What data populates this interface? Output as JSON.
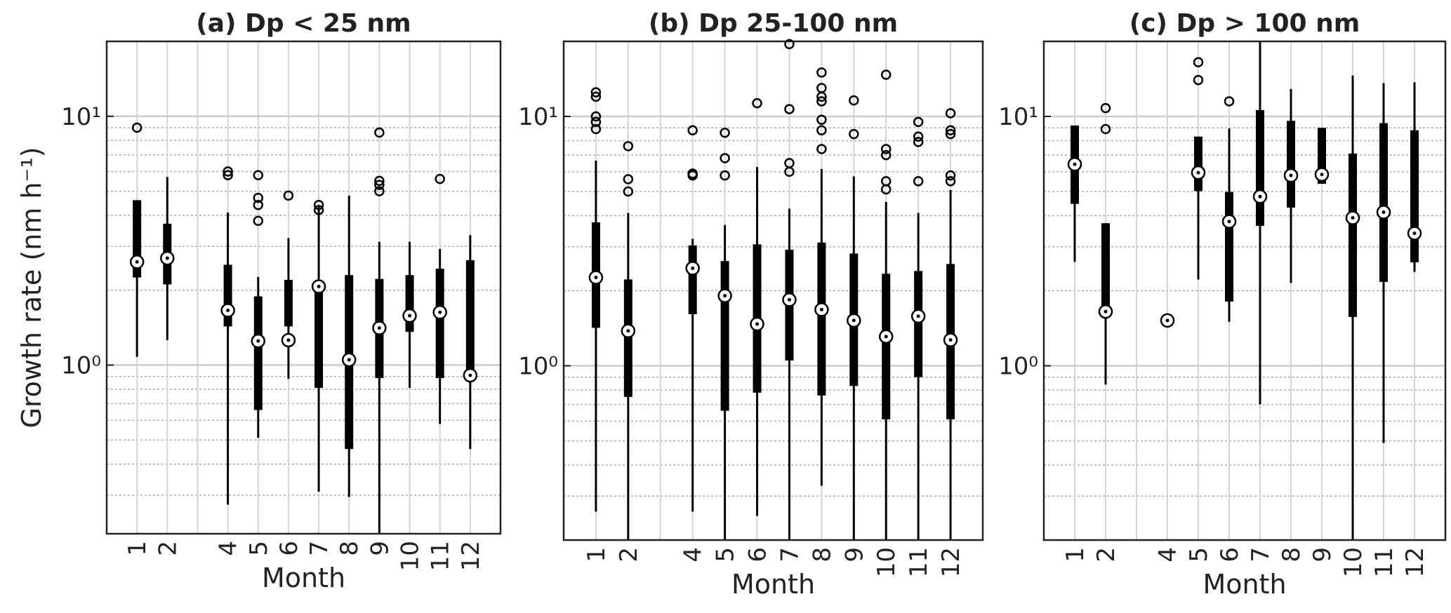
{
  "chart_data": [
    {
      "type": "box",
      "title": "(a) Dp < 25 nm",
      "ylabel": "Growth rate (nm h⁻¹)",
      "xlabel": "Month",
      "categories": [
        "1",
        "2",
        null,
        "4",
        "5",
        "6",
        "7",
        "8",
        "9",
        "10",
        "11",
        "12"
      ],
      "low": [
        1.08,
        1.26,
        null,
        0.275,
        0.51,
        0.88,
        0.31,
        0.295,
        0.21,
        0.81,
        0.58,
        0.46
      ],
      "q1": [
        2.25,
        2.11,
        null,
        1.43,
        0.66,
        1.43,
        0.81,
        0.46,
        0.887,
        1.36,
        0.887,
        0.91
      ],
      "median": [
        2.6,
        2.69,
        null,
        1.66,
        1.25,
        1.26,
        2.07,
        1.05,
        1.41,
        1.58,
        1.63,
        0.91
      ],
      "q3": [
        4.6,
        3.7,
        null,
        2.53,
        1.89,
        2.2,
        2.11,
        2.3,
        2.22,
        2.3,
        2.44,
        2.64
      ],
      "high": [
        4.6,
        5.7,
        null,
        4.1,
        2.26,
        3.24,
        4.35,
        4.8,
        3.13,
        3.13,
        2.93,
        3.33
      ],
      "outliers": [
        [
          9.0
        ],
        [],
        [],
        [
          5.8,
          6.0
        ],
        [
          5.8,
          4.7,
          4.4,
          3.8
        ],
        [
          4.8
        ],
        [
          4.2,
          4.4
        ],
        [],
        [
          8.6,
          5.5,
          5.3,
          5.0
        ],
        [],
        [
          5.6
        ],
        []
      ],
      "log_y": true,
      "ylim": [
        0.21,
        20
      ],
      "yticks": [
        {
          "value": 1,
          "label": "10⁰"
        },
        {
          "value": 10,
          "label": "10¹"
        }
      ],
      "minor_yticks": [
        0.3,
        0.4,
        0.5,
        0.6,
        0.7,
        0.8,
        0.9,
        2,
        3,
        4,
        5,
        6,
        7,
        8,
        9
      ],
      "grid": true
    },
    {
      "type": "box",
      "title": "(b) Dp 25-100 nm",
      "xlabel": "Month",
      "categories": [
        "1",
        "2",
        null,
        "4",
        "5",
        "6",
        "7",
        "8",
        "9",
        "10",
        "11",
        "12"
      ],
      "low": [
        0.26,
        0.2,
        null,
        0.26,
        0.2,
        0.25,
        0.2,
        0.33,
        0.2,
        0.2,
        0.2,
        0.2
      ],
      "q1": [
        1.42,
        0.75,
        null,
        1.61,
        0.66,
        0.78,
        1.05,
        0.76,
        0.83,
        0.61,
        0.9,
        0.61
      ],
      "median": [
        2.26,
        1.38,
        null,
        2.46,
        1.91,
        1.47,
        1.84,
        1.68,
        1.52,
        1.31,
        1.58,
        1.27
      ],
      "q3": [
        3.76,
        2.22,
        null,
        3.04,
        2.63,
        3.07,
        2.92,
        3.12,
        2.82,
        2.34,
        2.4,
        2.56
      ],
      "high": [
        6.65,
        4.1,
        null,
        3.23,
        3.67,
        6.27,
        4.27,
        6.16,
        5.75,
        4.54,
        4.1,
        5.07
      ],
      "outliers": [
        [
          12.5,
          12,
          10,
          9.5,
          8.9
        ],
        [
          7.6,
          5.6,
          5.0
        ],
        [],
        [
          8.8,
          5.9,
          5.8
        ],
        [
          8.6,
          6.8,
          5.8
        ],
        [
          11.3
        ],
        [
          19.5,
          10.7,
          6.5,
          6.0
        ],
        [
          15,
          13,
          12,
          11.5,
          9.7,
          8.8,
          7.4
        ],
        [
          11.6,
          8.5
        ],
        [
          14.7,
          7.4,
          7.0,
          5.5,
          5.1
        ],
        [
          9.5,
          8.3,
          7.9,
          5.5
        ],
        [
          10.3,
          8.8,
          8.5,
          5.8,
          5.5
        ]
      ],
      "log_y": true,
      "ylim": [
        0.2,
        20
      ],
      "yticks": [
        {
          "value": 1,
          "label": "10⁰"
        },
        {
          "value": 10,
          "label": "10¹"
        }
      ],
      "minor_yticks": [
        0.3,
        0.4,
        0.5,
        0.6,
        0.7,
        0.8,
        0.9,
        2,
        3,
        4,
        5,
        6,
        7,
        8,
        9
      ],
      "grid": true
    },
    {
      "type": "box",
      "title": "(c) Dp > 100 nm",
      "xlabel": "Month",
      "categories": [
        "1",
        "2",
        null,
        "4",
        "5",
        "6",
        "7",
        "8",
        "9",
        "10",
        "11",
        "12"
      ],
      "low": [
        2.61,
        0.84,
        null,
        1.52,
        2.22,
        1.5,
        0.7,
        2.15,
        5.37,
        0.2,
        0.49,
        2.38
      ],
      "q1": [
        4.46,
        1.62,
        null,
        1.52,
        5.02,
        1.81,
        3.64,
        4.31,
        5.37,
        1.57,
        2.17,
        2.6
      ],
      "median": [
        6.43,
        1.65,
        null,
        1.52,
        5.95,
        3.79,
        4.77,
        5.8,
        5.85,
        3.92,
        4.13,
        3.4
      ],
      "q3": [
        9.2,
        3.73,
        null,
        1.52,
        8.3,
        4.98,
        10.6,
        9.6,
        9.0,
        7.1,
        9.4,
        8.8
      ],
      "high": [
        9.2,
        3.73,
        null,
        1.52,
        8.3,
        8.95,
        20,
        12.9,
        9.0,
        14.6,
        13.6,
        13.7
      ],
      "outliers": [
        [],
        [
          10.8,
          8.9
        ],
        [],
        [],
        [
          16.5,
          14
        ],
        [
          11.5
        ],
        [],
        [],
        [],
        [],
        [],
        []
      ],
      "log_y": true,
      "ylim": [
        0.2,
        20
      ],
      "yticks": [
        {
          "value": 1,
          "label": "10⁰"
        },
        {
          "value": 10,
          "label": "10¹"
        }
      ],
      "minor_yticks": [
        0.3,
        0.4,
        0.5,
        0.6,
        0.7,
        0.8,
        0.9,
        2,
        3,
        4,
        5,
        6,
        7,
        8,
        9
      ],
      "grid": true
    }
  ]
}
